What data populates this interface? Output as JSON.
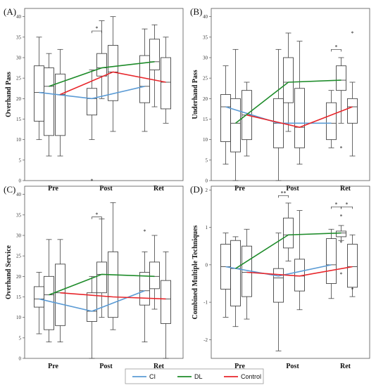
{
  "legend": [
    {
      "name": "CI",
      "color": "#5b9bd5"
    },
    {
      "name": "DL",
      "color": "#1e8c2a"
    },
    {
      "name": "Control",
      "color": "#e8262b"
    }
  ],
  "chart_data": [
    {
      "type": "box",
      "panel_label": "(A)",
      "ylabel": "Overhand Pass",
      "categories": [
        "Pre",
        "Post",
        "Ret"
      ],
      "ylim": [
        0,
        42
      ],
      "yticks": [
        0,
        5,
        10,
        15,
        20,
        25,
        30,
        35,
        40
      ],
      "boxes": {
        "CI": [
          {
            "min": 10,
            "q1": 14.5,
            "med": 21.5,
            "q3": 28,
            "max": 35,
            "outliers": []
          },
          {
            "min": 10,
            "q1": 16,
            "med": 20,
            "q3": 22.5,
            "max": 27,
            "outliers": [
              0
            ]
          },
          {
            "min": 12,
            "q1": 19,
            "med": 23,
            "q3": 30.5,
            "max": 37,
            "outliers": []
          }
        ],
        "DL": [
          {
            "min": 6,
            "q1": 11,
            "med": 23,
            "q3": 27.5,
            "max": 31,
            "outliers": []
          },
          {
            "min": 20,
            "q1": 25.5,
            "med": 27.5,
            "q3": 31,
            "max": 39,
            "outliers": []
          },
          {
            "min": 18,
            "q1": 27,
            "med": 29,
            "q3": 34.5,
            "max": 38,
            "outliers": []
          }
        ],
        "Control": [
          {
            "min": 6,
            "q1": 11,
            "med": 21,
            "q3": 26,
            "max": 32,
            "outliers": []
          },
          {
            "min": 12,
            "q1": 19.5,
            "med": 26.5,
            "q3": 33,
            "max": 40,
            "outliers": []
          },
          {
            "min": 14,
            "q1": 17.5,
            "med": 24,
            "q3": 30,
            "max": 35,
            "outliers": []
          }
        ]
      },
      "means": {
        "CI": [
          21.5,
          20,
          23
        ],
        "DL": [
          23,
          27.5,
          29
        ],
        "Control": [
          21,
          26.5,
          24
        ]
      },
      "significance": [
        {
          "category": "Post",
          "label": "*",
          "groups": [
            "CI",
            "DL"
          ],
          "y": 36.5
        }
      ]
    },
    {
      "type": "box",
      "panel_label": "(B)",
      "ylabel": "Underhand Pass",
      "categories": [
        "Pre",
        "Post",
        "Ret"
      ],
      "ylim": [
        0,
        42
      ],
      "yticks": [
        0,
        5,
        10,
        15,
        20,
        25,
        30,
        35,
        40
      ],
      "boxes": {
        "CI": [
          {
            "min": 4,
            "q1": 9.5,
            "med": 18,
            "q3": 21,
            "max": 28,
            "outliers": []
          },
          {
            "min": 0,
            "q1": 8,
            "med": 14,
            "q3": 20,
            "max": 32,
            "outliers": []
          },
          {
            "min": 8,
            "q1": 10,
            "med": 14,
            "q3": 19,
            "max": 22,
            "outliers": []
          }
        ],
        "DL": [
          {
            "min": 0,
            "q1": 7,
            "med": 14,
            "q3": 20,
            "max": 32,
            "outliers": []
          },
          {
            "min": 12,
            "q1": 19,
            "med": 24,
            "q3": 30,
            "max": 36,
            "outliers": []
          },
          {
            "min": 14,
            "q1": 22,
            "med": 24.5,
            "q3": 28,
            "max": 30,
            "outliers": [
              8
            ]
          }
        ],
        "Control": [
          {
            "min": 6,
            "q1": 10,
            "med": 16,
            "q3": 22,
            "max": 24,
            "outliers": []
          },
          {
            "min": 4,
            "q1": 8,
            "med": 13,
            "q3": 22.5,
            "max": 34,
            "outliers": []
          },
          {
            "min": 6,
            "q1": 14,
            "med": 18,
            "q3": 20,
            "max": 24,
            "outliers": [
              36
            ]
          }
        ]
      },
      "means": {
        "CI": [
          18,
          14,
          14
        ],
        "DL": [
          14,
          24,
          24.5
        ],
        "Control": [
          16,
          13,
          18
        ]
      },
      "significance": [
        {
          "category": "Ret",
          "label": "*",
          "groups": [
            "CI",
            "DL"
          ],
          "y": 32
        }
      ]
    },
    {
      "type": "box",
      "panel_label": "(C)",
      "ylabel": "Overhand Service",
      "categories": [
        "Pre",
        "Post",
        "Ret"
      ],
      "ylim": [
        0,
        42
      ],
      "yticks": [
        0,
        5,
        10,
        15,
        20,
        25,
        30,
        35,
        40
      ],
      "boxes": {
        "CI": [
          {
            "min": 6,
            "q1": 12.5,
            "med": 14.5,
            "q3": 17.5,
            "max": 21,
            "outliers": []
          },
          {
            "min": 0,
            "q1": 9,
            "med": 11.5,
            "q3": 16,
            "max": 20,
            "outliers": []
          },
          {
            "min": 4,
            "q1": 13,
            "med": 16.5,
            "q3": 21,
            "max": 26,
            "outliers": [
              31
            ]
          }
        ],
        "DL": [
          {
            "min": 4,
            "q1": 7,
            "med": 15.5,
            "q3": 20,
            "max": 29,
            "outliers": []
          },
          {
            "min": 10,
            "q1": 16,
            "med": 20.5,
            "q3": 23.5,
            "max": 34,
            "outliers": []
          },
          {
            "min": 12,
            "q1": 17,
            "med": 20,
            "q3": 23.5,
            "max": 30,
            "outliers": []
          }
        ],
        "Control": [
          {
            "min": 4,
            "q1": 8,
            "med": 16,
            "q3": 23,
            "max": 29,
            "outliers": []
          },
          {
            "min": 7,
            "q1": 10,
            "med": 15,
            "q3": 26,
            "max": 38,
            "outliers": []
          },
          {
            "min": 0,
            "q1": 8.5,
            "med": 14.5,
            "q3": 19,
            "max": 26,
            "outliers": []
          }
        ]
      },
      "means": {
        "CI": [
          14.5,
          11.5,
          16.5
        ],
        "DL": [
          15.5,
          20.5,
          20
        ],
        "Control": [
          16,
          15,
          14.5
        ]
      },
      "significance": [
        {
          "category": "Post",
          "label": "*",
          "groups": [
            "CI",
            "DL"
          ],
          "y": 34.5
        }
      ]
    },
    {
      "type": "box",
      "panel_label": "(D)",
      "ylabel": "Combined Multiple Techniques",
      "categories": [
        "Pre",
        "Post",
        "Ret"
      ],
      "ylim": [
        -2.5,
        2.1
      ],
      "yticks": [
        -2,
        -1,
        0,
        1,
        2
      ],
      "boxes": {
        "CI": [
          {
            "min": -1.4,
            "q1": -0.65,
            "med": -0.05,
            "q3": 0.55,
            "max": 0.85,
            "outliers": []
          },
          {
            "min": -2.3,
            "q1": -1.0,
            "med": -0.35,
            "q3": -0.1,
            "max": 0.85,
            "outliers": []
          },
          {
            "min": -0.9,
            "q1": -0.5,
            "med": 0,
            "q3": 0.7,
            "max": 0.95,
            "outliers": []
          }
        ],
        "DL": [
          {
            "min": -1.65,
            "q1": -1.1,
            "med": -0.1,
            "q3": 0.65,
            "max": 0.75,
            "outliers": []
          },
          {
            "min": 0.1,
            "q1": 0.45,
            "med": 0.8,
            "q3": 1.25,
            "max": 1.65,
            "outliers": []
          },
          {
            "min": 0.65,
            "q1": 0.75,
            "med": 0.85,
            "q3": 0.9,
            "max": 1.05,
            "outliers": [
              1.3,
              0.6,
              -0.25
            ]
          }
        ],
        "Control": [
          {
            "min": -1.45,
            "q1": -0.85,
            "med": -0.2,
            "q3": 0.5,
            "max": 0.95,
            "outliers": []
          },
          {
            "min": -1.2,
            "q1": -0.7,
            "med": -0.3,
            "q3": 0.15,
            "max": 1.45,
            "outliers": []
          },
          {
            "min": -0.85,
            "q1": -0.6,
            "med": -0.05,
            "q3": 0.55,
            "max": 0.8,
            "outliers": [
              -0.65
            ]
          }
        ]
      },
      "means": {
        "CI": [
          -0.05,
          -0.3,
          0
        ],
        "DL": [
          -0.1,
          0.8,
          0.85
        ],
        "Control": [
          -0.2,
          -0.3,
          -0.05
        ]
      },
      "significance": [
        {
          "category": "Post",
          "label": "**",
          "groups": [
            "CI",
            "DL"
          ],
          "y": 1.85
        },
        {
          "category": "Ret",
          "label": "*",
          "groups": [
            "CI",
            "DL"
          ],
          "y": 1.55
        },
        {
          "category": "Ret",
          "label": "*",
          "groups": [
            "DL",
            "Control"
          ],
          "y": 1.55
        }
      ]
    }
  ]
}
